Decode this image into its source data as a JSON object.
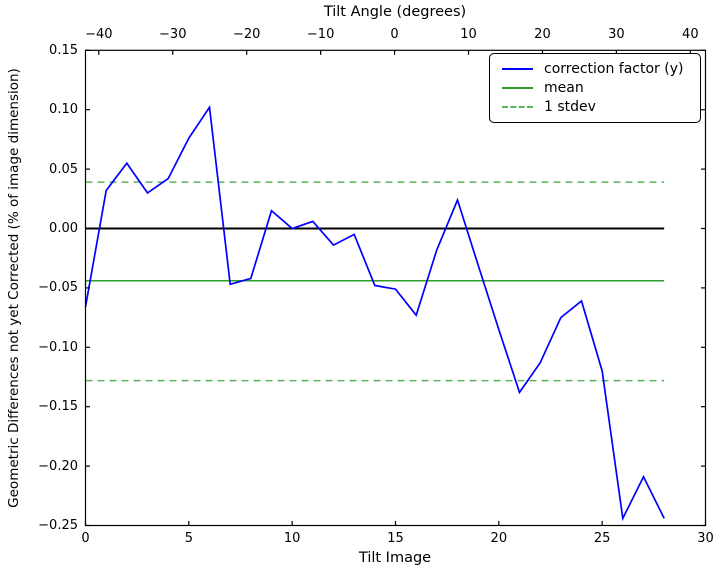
{
  "chart_data": {
    "type": "line",
    "top_axis_title": "Tilt Angle (degrees)",
    "xlabel": "Tilt Image",
    "ylabel": "Geometric Differences not yet Corrected (% of image dimension)",
    "xlim": [
      0,
      30
    ],
    "ylim": [
      -0.25,
      0.15
    ],
    "top_xlim": [
      -41.8,
      42.05
    ],
    "grid": false,
    "x_ticks": {
      "values": [
        0,
        5,
        10,
        15,
        20,
        25,
        30
      ],
      "labels": [
        "0",
        "5",
        "10",
        "15",
        "20",
        "25",
        "30"
      ]
    },
    "y_ticks": {
      "values": [
        0.15,
        0.1,
        0.05,
        0.0,
        -0.05,
        -0.1,
        -0.15,
        -0.2,
        -0.25
      ],
      "labels": [
        "0.15",
        "0.10",
        "0.05",
        "0.00",
        "−0.05",
        "−0.10",
        "−0.15",
        "−0.20",
        "−0.25"
      ]
    },
    "top_ticks": {
      "values": [
        -40,
        -30,
        -20,
        -10,
        0,
        10,
        20,
        30,
        40
      ],
      "labels": [
        "−40",
        "−30",
        "−20",
        "−10",
        "0",
        "10",
        "20",
        "30",
        "40"
      ]
    },
    "series": [
      {
        "name": "correction factor (y)",
        "color": "#0000ff",
        "line_style": "solid",
        "x": [
          0,
          1,
          2,
          3,
          4,
          5,
          6,
          7,
          8,
          9,
          10,
          11,
          12,
          13,
          14,
          15,
          16,
          17,
          18,
          19,
          20,
          21,
          22,
          23,
          24,
          25,
          26,
          27,
          28
        ],
        "y": [
          -0.066,
          0.032,
          0.055,
          0.03,
          0.042,
          0.076,
          0.102,
          -0.047,
          -0.042,
          0.015,
          0.0,
          0.006,
          -0.014,
          -0.005,
          -0.048,
          -0.051,
          -0.073,
          -0.018,
          0.024,
          -0.031,
          -0.085,
          -0.138,
          -0.113,
          -0.075,
          -0.061,
          -0.12,
          -0.244,
          -0.209,
          -0.244
        ]
      },
      {
        "name": "mean",
        "color": "#2e9b2e",
        "line_style": "solid",
        "y_value": -0.044,
        "x_range": [
          0,
          28
        ]
      },
      {
        "name": "1 stdev",
        "color": "#5cb55c",
        "line_style": "dashed",
        "y_values": [
          0.039,
          -0.128
        ],
        "x_range": [
          0,
          28
        ]
      }
    ],
    "zero_line": {
      "color": "#000000",
      "y_value": 0.0,
      "x_range": [
        0,
        28
      ]
    },
    "legend": {
      "position": "upper right",
      "entries": [
        "correction factor (y)",
        "mean",
        "1 stdev"
      ]
    },
    "frame_color": "#000000"
  }
}
